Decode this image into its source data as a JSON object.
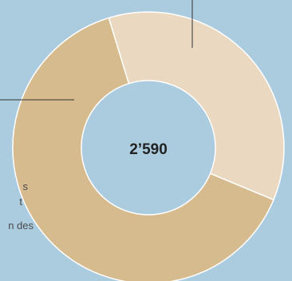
{
  "chart_data": {
    "type": "pie",
    "style": "donut",
    "center_label": "2’590",
    "series": [
      {
        "values": [
          36,
          64
        ]
      }
    ],
    "colors": [
      "#ead9c0",
      "#d6bb8e"
    ],
    "start_angle_deg": -17,
    "legend": "none",
    "grid": false
  },
  "annotation_text_fragments": [
    "s",
    "t",
    "n des"
  ]
}
